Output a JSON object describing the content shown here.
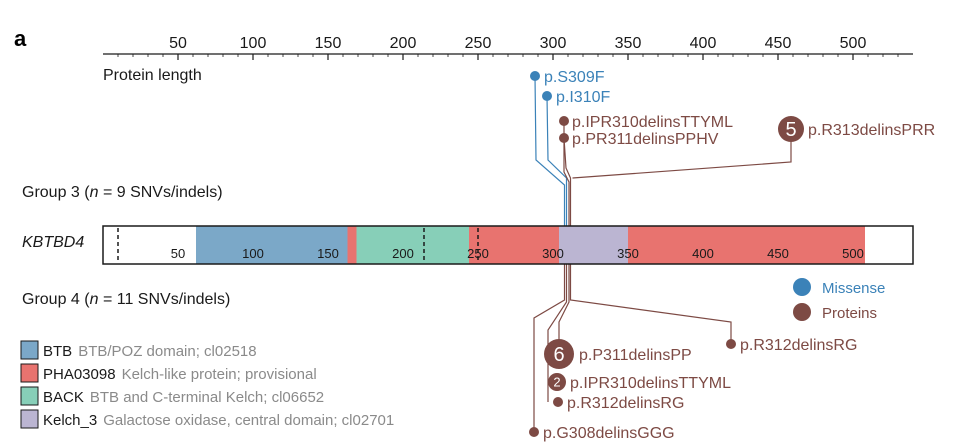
{
  "panel_letter": "a",
  "axis": {
    "label": "Protein length",
    "ticks": [
      50,
      100,
      150,
      200,
      250,
      300,
      350,
      400,
      450,
      500
    ],
    "min": 0,
    "max": 540
  },
  "group3_label": {
    "pre": "Group 3 (",
    "italic": "n",
    "post": " = 9 SNVs/indels)"
  },
  "group4_label": {
    "pre": "Group 4 (",
    "italic": "n",
    "post": " = 11 SNVs/indels)"
  },
  "gene": "KBTBD4",
  "gene_bar": {
    "ticks": [
      50,
      100,
      150,
      200,
      250,
      300,
      350,
      400,
      450,
      500
    ],
    "domains": [
      {
        "name": "BTB",
        "start": 62,
        "end": 163,
        "color": "#7ba8c8"
      },
      {
        "name": "PHA03098",
        "start": 163,
        "end": 169,
        "color": "#e8736f"
      },
      {
        "name": "BACK",
        "start": 169,
        "end": 244,
        "color": "#87cfb8"
      },
      {
        "name": "PHA03098",
        "start": 244,
        "end": 304,
        "color": "#e8736f"
      },
      {
        "name": "Kelch_3",
        "start": 304,
        "end": 350,
        "color": "#bbb5d2"
      },
      {
        "name": "PHA03098",
        "start": 350,
        "end": 508,
        "color": "#e8736f"
      }
    ],
    "dashed_at": [
      10,
      214,
      250
    ]
  },
  "colors": {
    "missense": "#3b82b8",
    "proteins": "#7d4a44"
  },
  "group3_mutations": [
    {
      "label": "p.S309F",
      "type": "missense",
      "count": 1
    },
    {
      "label": "p.I310F",
      "type": "missense",
      "count": 1
    },
    {
      "label": "p.IPR310delinsTTYML",
      "type": "proteins",
      "count": 1
    },
    {
      "label": "p.PR311delinsPPHV",
      "type": "proteins",
      "count": 1
    },
    {
      "label": "p.R313delinsPRR",
      "type": "proteins",
      "count": 5
    }
  ],
  "group4_mutations": [
    {
      "label": "p.R312delinsRG",
      "type": "proteins",
      "count": 1
    },
    {
      "label": "p.P311delinsPP",
      "type": "proteins",
      "count": 6
    },
    {
      "label": "p.IPR310delinsTTYML",
      "type": "proteins",
      "count": 2
    },
    {
      "label": "p.R312delinsRG",
      "type": "proteins",
      "count": 1
    },
    {
      "label": "p.G308delinsGGG",
      "type": "proteins",
      "count": 1
    }
  ],
  "type_legend": [
    {
      "label": "Missense",
      "type": "missense"
    },
    {
      "label": "Proteins",
      "type": "proteins"
    }
  ],
  "domain_legend": [
    {
      "name": "BTB",
      "desc": "BTB/POZ domain; cl02518",
      "color": "#7ba8c8"
    },
    {
      "name": "PHA03098",
      "desc": "Kelch-like protein; provisional",
      "color": "#e8736f"
    },
    {
      "name": "BACK",
      "desc": "BTB and C-terminal Kelch; cl06652",
      "color": "#87cfb8"
    },
    {
      "name": "Kelch_3",
      "desc": "Galactose oxidase, central domain; cl02701",
      "color": "#bbb5d2"
    }
  ]
}
